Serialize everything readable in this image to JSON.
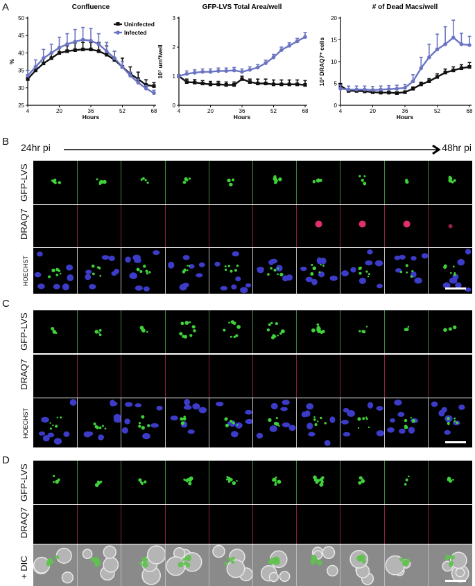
{
  "panels": {
    "A": "A",
    "B": "B",
    "C": "C",
    "D": "D"
  },
  "chart_data": [
    {
      "type": "line",
      "title": "Confluence",
      "ylabel": "%",
      "xlabel": "Hours",
      "ylim": [
        25,
        50
      ],
      "yticks": [
        25,
        30,
        35,
        40,
        45,
        50
      ],
      "xticks": [
        4,
        20,
        36,
        52,
        68
      ],
      "legend_position": "top-right",
      "x": [
        4,
        8,
        12,
        16,
        20,
        24,
        28,
        32,
        36,
        40,
        44,
        48,
        52,
        56,
        60,
        64,
        68
      ],
      "series": [
        {
          "name": "Uninfected",
          "color": "#111111",
          "marker": "square",
          "values": [
            32.5,
            35,
            37,
            38.5,
            40,
            40.5,
            40.8,
            41,
            41,
            40.5,
            39.5,
            38,
            36,
            34,
            32.5,
            30.8,
            30.5
          ],
          "errors": [
            0.5,
            1,
            1.5,
            1.5,
            1.5,
            1.5,
            2,
            2,
            2,
            2.5,
            2.5,
            2.5,
            2.5,
            2,
            2,
            1.5,
            1
          ]
        },
        {
          "name": "Infected",
          "color": "#6a74c2",
          "marker": "circle",
          "values": [
            33.5,
            36,
            38.5,
            40,
            41.5,
            42.5,
            43.2,
            43.8,
            43.5,
            42.5,
            40.5,
            38.5,
            36,
            33.5,
            31.5,
            29.8,
            28.5
          ],
          "errors": [
            1.5,
            2,
            2.5,
            2.5,
            3,
            3,
            3.5,
            3.5,
            3.5,
            3,
            2.5,
            2,
            1.5,
            1,
            1,
            0.8,
            0.8
          ]
        }
      ]
    },
    {
      "type": "line",
      "title": "GFP-LVS Total Area/well",
      "ylabel": "10⁷ um²/well",
      "xlabel": "Hours",
      "ylim": [
        0,
        3
      ],
      "yticks": [
        0,
        1,
        2,
        3
      ],
      "xticks": [
        4,
        20,
        36,
        52,
        68
      ],
      "x": [
        4,
        8,
        12,
        16,
        20,
        24,
        28,
        32,
        36,
        40,
        44,
        48,
        52,
        56,
        60,
        64,
        68
      ],
      "series": [
        {
          "name": "Uninfected",
          "color": "#111111",
          "marker": "square",
          "values": [
            1.0,
            0.8,
            0.78,
            0.75,
            0.72,
            0.72,
            0.7,
            0.7,
            0.9,
            0.8,
            0.75,
            0.75,
            0.72,
            0.72,
            0.72,
            0.72,
            0.7
          ],
          "errors": [
            0.05,
            0.1,
            0.1,
            0.1,
            0.1,
            0.1,
            0.1,
            0.1,
            0.1,
            0.1,
            0.15,
            0.15,
            0.15,
            0.15,
            0.15,
            0.15,
            0.15
          ]
        },
        {
          "name": "Infected",
          "color": "#6a74c2",
          "marker": "circle",
          "values": [
            1.0,
            1.08,
            1.12,
            1.15,
            1.15,
            1.18,
            1.18,
            1.2,
            1.15,
            1.22,
            1.3,
            1.45,
            1.65,
            1.9,
            2.05,
            2.2,
            2.35
          ],
          "errors": [
            0.05,
            0.1,
            0.1,
            0.1,
            0.1,
            0.1,
            0.1,
            0.1,
            0.1,
            0.1,
            0.1,
            0.1,
            0.1,
            0.1,
            0.1,
            0.1,
            0.15
          ]
        }
      ]
    },
    {
      "type": "line",
      "title": "# of Dead Macs/well",
      "ylabel": "10³ DRAQ7⁺ cells",
      "xlabel": "Hours",
      "ylim": [
        0,
        20
      ],
      "yticks": [
        0,
        5,
        10,
        15,
        20
      ],
      "xticks": [
        4,
        20,
        36,
        52,
        68
      ],
      "x": [
        4,
        8,
        12,
        16,
        20,
        24,
        28,
        32,
        36,
        40,
        44,
        48,
        52,
        56,
        60,
        64,
        68
      ],
      "series": [
        {
          "name": "Uninfected",
          "color": "#111111",
          "marker": "square",
          "values": [
            4.5,
            3.3,
            3.3,
            3.2,
            3.0,
            2.9,
            2.9,
            2.8,
            3.0,
            3.8,
            4.8,
            5.5,
            6.5,
            7.5,
            8.0,
            8.5,
            8.8
          ],
          "errors": [
            0.5,
            0.3,
            0.3,
            0.3,
            0.3,
            0.3,
            0.3,
            0.3,
            0.3,
            0.4,
            0.5,
            0.6,
            0.7,
            0.8,
            0.8,
            0.8,
            1.0
          ]
        },
        {
          "name": "Infected",
          "color": "#6a74c2",
          "marker": "circle",
          "values": [
            3.8,
            3.6,
            3.6,
            3.6,
            3.5,
            3.6,
            3.7,
            3.8,
            4.0,
            5.5,
            8.5,
            11.0,
            12.8,
            14.0,
            15.5,
            14.0,
            13.8
          ],
          "errors": [
            0.8,
            0.8,
            0.8,
            0.8,
            0.8,
            0.8,
            0.8,
            0.8,
            0.8,
            1.5,
            2.5,
            3.0,
            3.5,
            4.0,
            4.0,
            2.5,
            2.0
          ]
        }
      ]
    }
  ],
  "timeline": {
    "start": "24hr pi",
    "end": "48hr pi"
  },
  "rows": {
    "B": [
      {
        "label": "GFP-LVS",
        "kind": "gfp"
      },
      {
        "label": "DRAQ7",
        "kind": "draq"
      },
      {
        "label": "HOECHST",
        "kind": "hoechst",
        "small": true
      }
    ],
    "C": [
      {
        "label": "GFP-LVS",
        "kind": "gfp"
      },
      {
        "label": "DRAQ7",
        "kind": "draq"
      },
      {
        "label": "HOECHST",
        "kind": "hoechst",
        "small": true
      }
    ],
    "D": [
      {
        "label": "GFP-LVS",
        "kind": "gfp"
      },
      {
        "label": "DRAQ7",
        "kind": "draq"
      },
      {
        "label": "+ DIC",
        "kind": "dic"
      }
    ]
  }
}
